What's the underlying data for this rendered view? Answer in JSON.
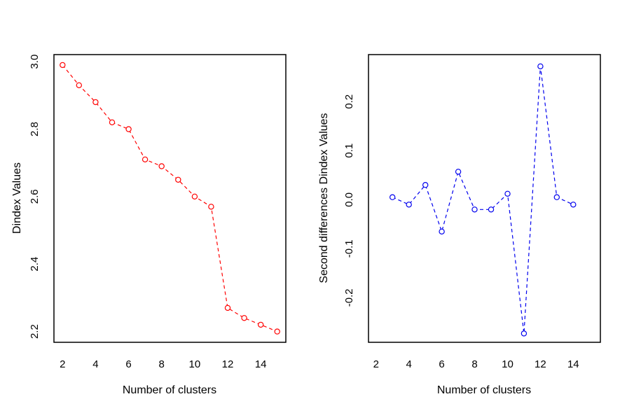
{
  "figure": {
    "background": "#ffffff",
    "border_color": "#000000",
    "text_color": "#000000"
  },
  "chart_data": [
    {
      "type": "line",
      "panel": "dindex",
      "title": "",
      "xlabel": "Number of clusters",
      "ylabel": "Dindex Values",
      "color": "#ff0000",
      "marker": "open-circle",
      "line_style": "dashed",
      "legend": "none",
      "grid": false,
      "x": [
        2,
        3,
        4,
        5,
        6,
        7,
        8,
        9,
        10,
        11,
        12,
        13,
        14,
        15
      ],
      "y": [
        2.99,
        2.93,
        2.88,
        2.82,
        2.8,
        2.71,
        2.69,
        2.65,
        2.6,
        2.57,
        2.27,
        2.24,
        2.22,
        2.2
      ],
      "xlim": [
        1.48,
        15.52
      ],
      "ylim": [
        2.168,
        3.021
      ],
      "xtick_values": [
        2,
        4,
        6,
        8,
        10,
        12,
        14
      ],
      "xtick_labels": [
        "2",
        "4",
        "6",
        "8",
        "10",
        "12",
        "14"
      ],
      "ytick_values": [
        2.2,
        2.4,
        2.6,
        2.8,
        3.0
      ],
      "ytick_labels": [
        "2.2",
        "2.4",
        "2.6",
        "2.8",
        "3.0"
      ]
    },
    {
      "type": "line",
      "panel": "second-differences",
      "title": "",
      "xlabel": "Number of clusters",
      "ylabel": "Second differences Dindex Values",
      "color": "#0000ee",
      "marker": "open-circle",
      "line_style": "dashed",
      "legend": "none",
      "grid": false,
      "x": [
        3,
        4,
        5,
        6,
        7,
        8,
        9,
        10,
        11,
        12,
        13,
        14
      ],
      "y": [
        0.005,
        -0.01,
        0.03,
        -0.065,
        0.057,
        -0.02,
        -0.02,
        0.012,
        -0.273,
        0.272,
        0.005,
        -0.01
      ],
      "xlim": [
        1.54,
        15.65
      ],
      "ylim": [
        -0.291,
        0.296
      ],
      "xtick_values": [
        2,
        4,
        6,
        8,
        10,
        12,
        14
      ],
      "xtick_labels": [
        "2",
        "4",
        "6",
        "8",
        "10",
        "12",
        "14"
      ],
      "ytick_values": [
        -0.2,
        -0.1,
        0.0,
        0.1,
        0.2
      ],
      "ytick_labels": [
        "-0.2",
        "-0.1",
        "0.0",
        "0.1",
        "0.2"
      ]
    }
  ]
}
